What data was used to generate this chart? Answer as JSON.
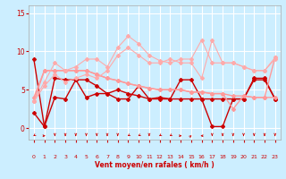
{
  "title": "",
  "xlabel": "Vent moyen/en rafales ( km/h )",
  "ylabel": "",
  "background_color": "#cceeff",
  "grid_color": "#ffffff",
  "xlim": [
    -0.5,
    23.5
  ],
  "ylim": [
    -1.5,
    16
  ],
  "xticks": [
    0,
    1,
    2,
    3,
    4,
    5,
    6,
    7,
    8,
    9,
    10,
    11,
    12,
    13,
    14,
    15,
    16,
    17,
    18,
    19,
    20,
    21,
    22,
    23
  ],
  "yticks": [
    0,
    5,
    10,
    15
  ],
  "tick_color": "#cc0000",
  "label_color": "#cc0000",
  "series": [
    {
      "x": [
        0,
        1,
        2,
        3,
        4,
        5,
        6,
        7,
        8,
        9,
        10,
        11,
        12,
        13,
        14,
        15,
        16,
        17,
        18,
        19,
        20,
        21,
        22,
        23
      ],
      "y": [
        9.0,
        0.2,
        6.5,
        6.3,
        6.3,
        6.3,
        5.5,
        4.5,
        5.0,
        4.5,
        4.2,
        3.8,
        4.0,
        3.8,
        3.8,
        3.8,
        3.8,
        3.8,
        3.8,
        3.8,
        3.8,
        6.5,
        6.5,
        3.8
      ],
      "color": "#cc0000",
      "linewidth": 1.0,
      "marker": "D",
      "markersize": 2.0
    },
    {
      "x": [
        0,
        1,
        2,
        3,
        4,
        5,
        6,
        7,
        8,
        9,
        10,
        11,
        12,
        13,
        14,
        15,
        16,
        17,
        18,
        19,
        20,
        21,
        22,
        23
      ],
      "y": [
        2.0,
        0.2,
        4.0,
        3.8,
        6.3,
        4.0,
        4.5,
        4.5,
        3.8,
        3.8,
        5.5,
        3.8,
        3.8,
        3.8,
        6.3,
        6.3,
        3.8,
        0.2,
        0.2,
        3.8,
        3.8,
        6.3,
        6.3,
        3.8
      ],
      "color": "#cc0000",
      "linewidth": 1.0,
      "marker": "D",
      "markersize": 2.0
    },
    {
      "x": [
        0,
        1,
        2,
        3,
        4,
        5,
        6,
        7,
        8,
        9,
        10,
        11,
        12,
        13,
        14,
        15,
        16,
        17,
        18,
        19,
        20,
        21,
        22,
        23
      ],
      "y": [
        4.0,
        7.5,
        7.5,
        7.5,
        7.5,
        7.5,
        7.0,
        6.5,
        6.2,
        5.8,
        5.5,
        5.2,
        5.0,
        5.0,
        5.0,
        4.7,
        4.7,
        4.5,
        4.5,
        4.2,
        4.2,
        4.0,
        4.0,
        4.0
      ],
      "color": "#ff9999",
      "linewidth": 1.0,
      "marker": "D",
      "markersize": 2.0
    },
    {
      "x": [
        0,
        1,
        2,
        3,
        4,
        5,
        6,
        7,
        8,
        9,
        10,
        11,
        12,
        13,
        14,
        15,
        16,
        17,
        18,
        19,
        20,
        21,
        22,
        23
      ],
      "y": [
        3.5,
        7.5,
        7.5,
        7.5,
        7.5,
        7.5,
        7.0,
        6.5,
        6.2,
        5.8,
        5.5,
        5.2,
        5.0,
        5.0,
        5.0,
        4.7,
        4.7,
        4.5,
        4.5,
        2.5,
        4.2,
        4.0,
        4.0,
        9.2
      ],
      "color": "#ff9999",
      "linewidth": 1.0,
      "marker": "D",
      "markersize": 2.0
    },
    {
      "x": [
        0,
        1,
        2,
        3,
        4,
        5,
        6,
        7,
        8,
        9,
        10,
        11,
        12,
        13,
        14,
        15,
        16,
        17,
        18,
        19,
        20,
        21,
        22,
        23
      ],
      "y": [
        3.5,
        6.0,
        8.5,
        7.5,
        8.0,
        9.0,
        9.0,
        8.0,
        10.5,
        12.0,
        11.0,
        9.5,
        8.8,
        8.5,
        9.0,
        9.0,
        11.5,
        8.5,
        8.5,
        8.5,
        8.0,
        7.5,
        7.5,
        9.2
      ],
      "color": "#ffaaaa",
      "linewidth": 0.8,
      "marker": "D",
      "markersize": 2.0
    },
    {
      "x": [
        0,
        1,
        2,
        3,
        4,
        5,
        6,
        7,
        8,
        9,
        10,
        11,
        12,
        13,
        14,
        15,
        16,
        17,
        18,
        19,
        20,
        21,
        22,
        23
      ],
      "y": [
        3.5,
        5.5,
        7.0,
        6.0,
        6.5,
        7.0,
        6.5,
        7.5,
        9.5,
        10.5,
        9.5,
        8.5,
        8.5,
        9.0,
        8.5,
        8.5,
        6.5,
        11.5,
        8.5,
        8.5,
        8.0,
        7.5,
        7.5,
        9.0
      ],
      "color": "#ffaaaa",
      "linewidth": 0.8,
      "marker": "D",
      "markersize": 2.0
    }
  ],
  "arrow_color": "#cc0000",
  "arrow_directions": [
    225,
    90,
    180,
    180,
    180,
    180,
    180,
    180,
    180,
    225,
    225,
    180,
    225,
    225,
    90,
    45,
    270,
    180,
    180,
    180,
    180,
    180,
    180,
    180
  ]
}
